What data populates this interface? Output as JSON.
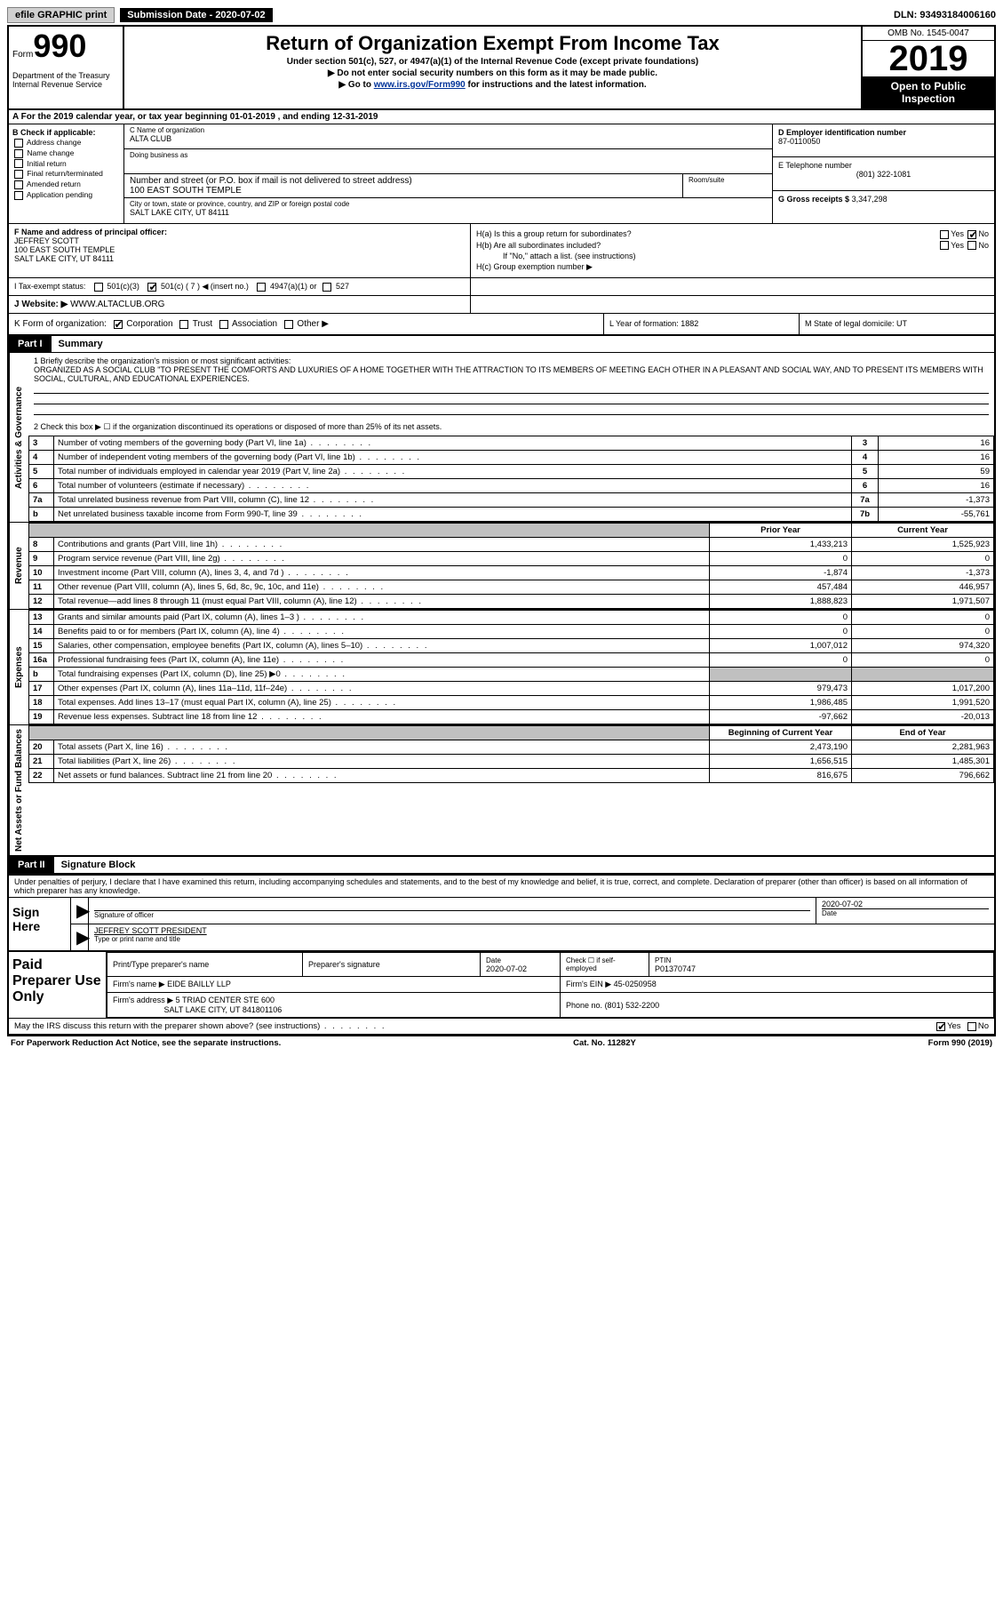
{
  "topbar": {
    "efile": "efile GRAPHIC print",
    "submission": "Submission Date - 2020-07-02",
    "dln": "DLN: 93493184006160"
  },
  "header": {
    "form_word": "Form",
    "form_num": "990",
    "dept1": "Department of the Treasury",
    "dept2": "Internal Revenue Service",
    "title": "Return of Organization Exempt From Income Tax",
    "sub1": "Under section 501(c), 527, or 4947(a)(1) of the Internal Revenue Code (except private foundations)",
    "sub2": "▶ Do not enter social security numbers on this form as it may be made public.",
    "sub3_pre": "▶ Go to ",
    "sub3_link": "www.irs.gov/Form990",
    "sub3_post": " for instructions and the latest information.",
    "omb": "OMB No. 1545-0047",
    "year": "2019",
    "open": "Open to Public Inspection"
  },
  "period": "A For the 2019 calendar year, or tax year beginning 01-01-2019   , and ending 12-31-2019",
  "blockB": {
    "label": "B Check if applicable:",
    "items": [
      "Address change",
      "Name change",
      "Initial return",
      "Final return/terminated",
      "Amended return",
      "Application pending"
    ]
  },
  "blockC": {
    "name_lbl": "C Name of organization",
    "name": "ALTA CLUB",
    "dba_lbl": "Doing business as",
    "addr_lbl": "Number and street (or P.O. box if mail is not delivered to street address)",
    "addr": "100 EAST SOUTH TEMPLE",
    "room_lbl": "Room/suite",
    "city_lbl": "City or town, state or province, country, and ZIP or foreign postal code",
    "city": "SALT LAKE CITY, UT  84111"
  },
  "blockD": {
    "ein_lbl": "D Employer identification number",
    "ein": "87-0110050",
    "tel_lbl": "E Telephone number",
    "tel": "(801) 322-1081",
    "gross_lbl": "G Gross receipts $",
    "gross": "3,347,298"
  },
  "blockF": {
    "lbl": "F Name and address of principal officer:",
    "name": "JEFFREY SCOTT",
    "addr1": "100 EAST SOUTH TEMPLE",
    "addr2": "SALT LAKE CITY, UT  84111"
  },
  "blockH": {
    "a": "H(a)  Is this a group return for subordinates?",
    "b": "H(b)  Are all subordinates included?",
    "bnote": "If \"No,\" attach a list. (see instructions)",
    "c": "H(c)  Group exemption number ▶"
  },
  "taxstatus": {
    "lbl": "I  Tax-exempt status:",
    "c3": "501(c)(3)",
    "c7pre": "501(c) ( 7 ) ◀ (insert no.)",
    "a1": "4947(a)(1) or",
    "c527": "527"
  },
  "website_lbl": "J  Website: ▶",
  "website": "WWW.ALTACLUB.ORG",
  "korg": {
    "lbl": "K Form of organization:",
    "corp": "Corporation",
    "trust": "Trust",
    "assoc": "Association",
    "other": "Other ▶"
  },
  "lform": "L Year of formation: 1882",
  "mstate": "M State of legal domicile: UT",
  "part1": {
    "num": "Part I",
    "title": "Summary"
  },
  "summary": {
    "side_ag": "Activities & Governance",
    "side_rev": "Revenue",
    "side_exp": "Expenses",
    "side_na": "Net Assets or Fund Balances",
    "q1_lbl": "1   Briefly describe the organization's mission or most significant activities:",
    "q1_text": "ORGANIZED AS A SOCIAL CLUB \"TO PRESENT THE COMFORTS AND LUXURIES OF A HOME TOGETHER WITH THE ATTRACTION TO ITS MEMBERS OF MEETING EACH OTHER IN A PLEASANT AND SOCIAL WAY, AND TO PRESENT ITS MEMBERS WITH SOCIAL, CULTURAL, AND EDUCATIONAL EXPERIENCES.",
    "q2": "2   Check this box ▶ ☐  if the organization discontinued its operations or disposed of more than 25% of its net assets.",
    "rows_ag": [
      {
        "n": "3",
        "t": "Number of voting members of the governing body (Part VI, line 1a)",
        "b": "3",
        "v": "16"
      },
      {
        "n": "4",
        "t": "Number of independent voting members of the governing body (Part VI, line 1b)",
        "b": "4",
        "v": "16"
      },
      {
        "n": "5",
        "t": "Total number of individuals employed in calendar year 2019 (Part V, line 2a)",
        "b": "5",
        "v": "59"
      },
      {
        "n": "6",
        "t": "Total number of volunteers (estimate if necessary)",
        "b": "6",
        "v": "16"
      },
      {
        "n": "7a",
        "t": "Total unrelated business revenue from Part VIII, column (C), line 12",
        "b": "7a",
        "v": "-1,373"
      },
      {
        "n": "b",
        "t": "Net unrelated business taxable income from Form 990-T, line 39",
        "b": "7b",
        "v": "-55,761"
      }
    ],
    "hdr_prior": "Prior Year",
    "hdr_curr": "Current Year",
    "rows_rev": [
      {
        "n": "8",
        "t": "Contributions and grants (Part VIII, line 1h)",
        "p": "1,433,213",
        "c": "1,525,923"
      },
      {
        "n": "9",
        "t": "Program service revenue (Part VIII, line 2g)",
        "p": "0",
        "c": "0"
      },
      {
        "n": "10",
        "t": "Investment income (Part VIII, column (A), lines 3, 4, and 7d )",
        "p": "-1,874",
        "c": "-1,373"
      },
      {
        "n": "11",
        "t": "Other revenue (Part VIII, column (A), lines 5, 6d, 8c, 9c, 10c, and 11e)",
        "p": "457,484",
        "c": "446,957"
      },
      {
        "n": "12",
        "t": "Total revenue—add lines 8 through 11 (must equal Part VIII, column (A), line 12)",
        "p": "1,888,823",
        "c": "1,971,507"
      }
    ],
    "rows_exp": [
      {
        "n": "13",
        "t": "Grants and similar amounts paid (Part IX, column (A), lines 1–3 )",
        "p": "0",
        "c": "0"
      },
      {
        "n": "14",
        "t": "Benefits paid to or for members (Part IX, column (A), line 4)",
        "p": "0",
        "c": "0"
      },
      {
        "n": "15",
        "t": "Salaries, other compensation, employee benefits (Part IX, column (A), lines 5–10)",
        "p": "1,007,012",
        "c": "974,320"
      },
      {
        "n": "16a",
        "t": "Professional fundraising fees (Part IX, column (A), line 11e)",
        "p": "0",
        "c": "0"
      },
      {
        "n": "b",
        "t": "Total fundraising expenses (Part IX, column (D), line 25) ▶0",
        "p": "",
        "c": "",
        "shade": true
      },
      {
        "n": "17",
        "t": "Other expenses (Part IX, column (A), lines 11a–11d, 11f–24e)",
        "p": "979,473",
        "c": "1,017,200"
      },
      {
        "n": "18",
        "t": "Total expenses. Add lines 13–17 (must equal Part IX, column (A), line 25)",
        "p": "1,986,485",
        "c": "1,991,520"
      },
      {
        "n": "19",
        "t": "Revenue less expenses. Subtract line 18 from line 12",
        "p": "-97,662",
        "c": "-20,013"
      }
    ],
    "hdr_beg": "Beginning of Current Year",
    "hdr_end": "End of Year",
    "rows_na": [
      {
        "n": "20",
        "t": "Total assets (Part X, line 16)",
        "p": "2,473,190",
        "c": "2,281,963"
      },
      {
        "n": "21",
        "t": "Total liabilities (Part X, line 26)",
        "p": "1,656,515",
        "c": "1,485,301"
      },
      {
        "n": "22",
        "t": "Net assets or fund balances. Subtract line 21 from line 20",
        "p": "816,675",
        "c": "796,662"
      }
    ]
  },
  "part2": {
    "num": "Part II",
    "title": "Signature Block"
  },
  "sig": {
    "perjury": "Under penalties of perjury, I declare that I have examined this return, including accompanying schedules and statements, and to the best of my knowledge and belief, it is true, correct, and complete. Declaration of preparer (other than officer) is based on all information of which preparer has any knowledge.",
    "sign_here": "Sign Here",
    "sig_officer": "Signature of officer",
    "date": "Date",
    "sig_date": "2020-07-02",
    "name_title": "JEFFREY SCOTT  PRESIDENT",
    "type_name": "Type or print name and title"
  },
  "prep": {
    "label": "Paid Preparer Use Only",
    "h1": "Print/Type preparer's name",
    "h2": "Preparer's signature",
    "h3_lbl": "Date",
    "h3": "2020-07-02",
    "h4": "Check ☐ if self-employed",
    "h5_lbl": "PTIN",
    "h5": "P01370747",
    "firm_lbl": "Firm's name    ▶",
    "firm": "EIDE BAILLY LLP",
    "ein_lbl": "Firm's EIN ▶",
    "ein": "45-0250958",
    "addr_lbl": "Firm's address ▶",
    "addr1": "5 TRIAD CENTER STE 600",
    "addr2": "SALT LAKE CITY, UT  841801106",
    "phone_lbl": "Phone no.",
    "phone": "(801) 532-2200"
  },
  "discuss": "May the IRS discuss this return with the preparer shown above? (see instructions)",
  "footer": {
    "l": "For Paperwork Reduction Act Notice, see the separate instructions.",
    "m": "Cat. No. 11282Y",
    "r": "Form 990 (2019)"
  },
  "yes": "Yes",
  "no": "No"
}
